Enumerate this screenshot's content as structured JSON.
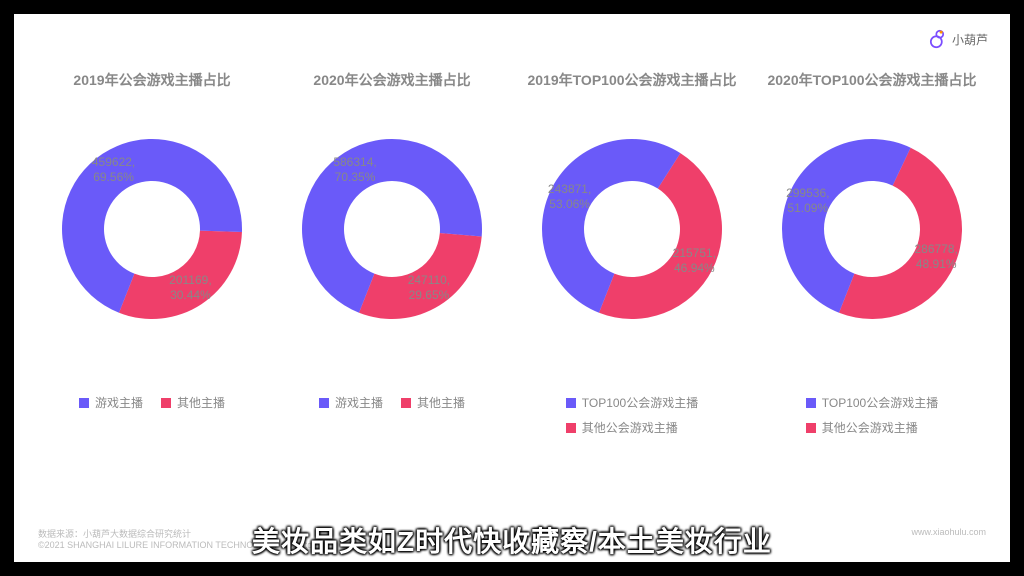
{
  "brand": {
    "text": "小葫芦",
    "icon_color": "#7b4dff",
    "accent": "#ff9100"
  },
  "palette": {
    "series_a": "#6a5af9",
    "series_b": "#ef3f6a",
    "hole": "#ffffff",
    "label": "#888888"
  },
  "donut": {
    "outer_r": 90,
    "inner_r": 48,
    "label_r": 70,
    "start_angle_deg": -158.5
  },
  "charts": [
    {
      "title": "2019年公会游戏主播占比",
      "a": {
        "value": 459622,
        "pct": 69.56,
        "label": "459622,\n69.56%"
      },
      "b": {
        "value": 201169,
        "pct": 30.44,
        "label": "201169,\n30.44%"
      },
      "legend": [
        "游戏主播",
        "其他主播"
      ]
    },
    {
      "title": "2020年公会游戏主播占比",
      "a": {
        "value": 586314,
        "pct": 70.35,
        "label": "586314,\n70.35%"
      },
      "b": {
        "value": 247110,
        "pct": 29.65,
        "label": "247110,\n29.65%"
      },
      "legend": [
        "游戏主播",
        "其他主播"
      ]
    },
    {
      "title": "2019年TOP100公会游戏主播占比",
      "a": {
        "value": 243871,
        "pct": 53.06,
        "label": "243871,\n53.06%"
      },
      "b": {
        "value": 215751,
        "pct": 46.94,
        "label": "215751,\n46.94%"
      },
      "legend": [
        "TOP100公会游戏主播",
        "其他公会游戏主播"
      ]
    },
    {
      "title": "2020年TOP100公会游戏主播占比",
      "a": {
        "value": 299536,
        "pct": 51.09,
        "label": "299536,\n51.09%"
      },
      "b": {
        "value": 286778,
        "pct": 48.91,
        "label": "286778,\n48.91%"
      },
      "legend": [
        "TOP100公会游戏主播",
        "其他公会游戏主播"
      ]
    }
  ],
  "footer": {
    "left_1": "数据来源：小葫芦大数据综合研究统计",
    "left_2": "©2021  SHANGHAI  LILURE  INFORMATION  TECHNOLOGY Co., Ltd.",
    "right": "www.xiaohulu.com"
  },
  "caption": "美妆品类如Z时代快收藏察/本土美妆行业"
}
